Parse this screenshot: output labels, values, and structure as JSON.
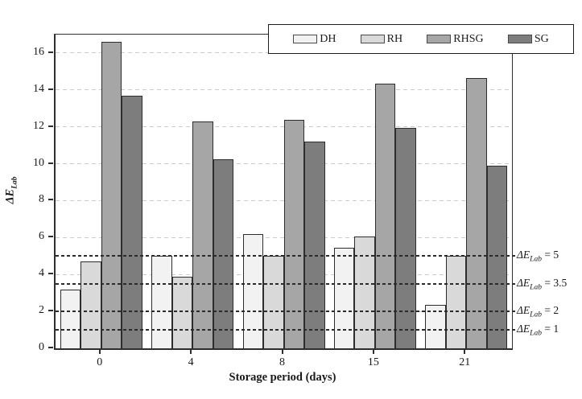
{
  "figure": {
    "y_axis_label": {
      "main": "ΔE",
      "sub": "Lab"
    },
    "x_axis_label": "Storage period (days)"
  },
  "chart_data": {
    "type": "bar",
    "title": "",
    "categories": [
      "0",
      "4",
      "8",
      "15",
      "21"
    ],
    "xlabel": "Storage period (days)",
    "ylabel": "ΔE_Lab",
    "ylim": [
      0,
      17
    ],
    "y_ticks": [
      0,
      2,
      4,
      6,
      8,
      10,
      12,
      14,
      16
    ],
    "grid": "horizontal light-gray dashed lines at every y tick",
    "legend_position": "top-right",
    "series": [
      {
        "name": "DH",
        "color": "#f2f2f2",
        "values": [
          3.2,
          5.0,
          6.2,
          5.45,
          2.35
        ]
      },
      {
        "name": "RH",
        "color": "#d9d9d9",
        "values": [
          4.7,
          3.9,
          5.0,
          6.05,
          5.0
        ]
      },
      {
        "name": "RHSG",
        "color": "#a6a6a6",
        "values": [
          16.6,
          12.3,
          12.4,
          14.35,
          14.65
        ]
      },
      {
        "name": "SG",
        "color": "#7d7d7d",
        "values": [
          13.7,
          10.25,
          11.2,
          11.95,
          9.9
        ]
      }
    ],
    "thresholds": [
      {
        "value": 5,
        "label": "ΔE_Lab = 5",
        "label_main": "ΔE",
        "label_sub": "Lab",
        "label_rest": " = 5"
      },
      {
        "value": 3.5,
        "label": "ΔE_Lab = 3.5",
        "label_main": "ΔE",
        "label_sub": "Lab",
        "label_rest": " = 3.5"
      },
      {
        "value": 2,
        "label": "ΔE_Lab = 2",
        "label_main": "ΔE",
        "label_sub": "Lab",
        "label_rest": " = 2"
      },
      {
        "value": 1,
        "label": "ΔE_Lab = 1",
        "label_main": "ΔE",
        "label_sub": "Lab",
        "label_rest": " = 1"
      }
    ],
    "threshold_line_style": "dark dashed, drawn over bars",
    "bar_border_color": "#2d2d2d"
  }
}
